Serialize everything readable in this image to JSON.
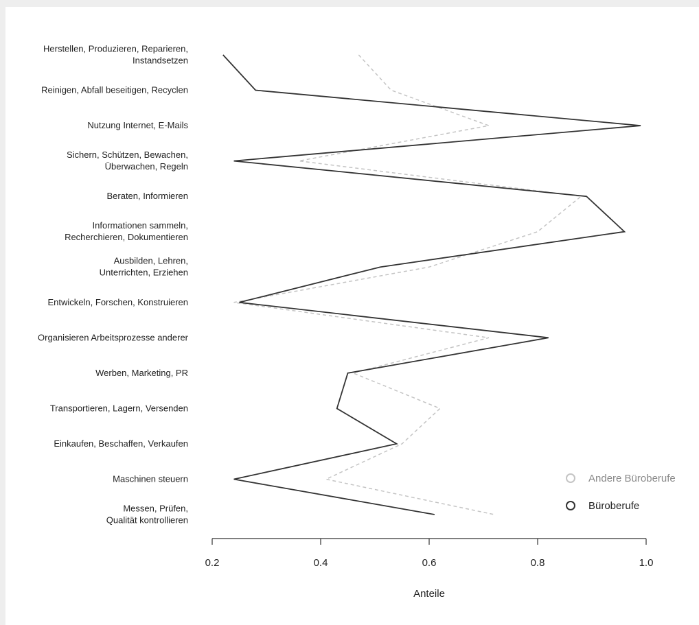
{
  "chart_data": {
    "type": "line",
    "orientation": "horizontal",
    "xlabel": "Anteile",
    "xlim": [
      0.2,
      1.0
    ],
    "xticks": [
      "0.2",
      "0.4",
      "0.6",
      "0.8",
      "1.0"
    ],
    "grid": false,
    "legend_position": "bottom-right",
    "categories": [
      [
        "Herstellen, Produzieren, Reparieren,",
        "Instandsetzen"
      ],
      [
        "Reinigen, Abfall beseitigen, Recyclen"
      ],
      [
        "Nutzung Internet, E-Mails"
      ],
      [
        "Sichern, Schützen, Bewachen,",
        "Überwachen, Regeln"
      ],
      [
        "Beraten, Informieren"
      ],
      [
        "Informationen sammeln,",
        "Recherchieren, Dokumentieren"
      ],
      [
        "Ausbilden, Lehren,",
        "Unterrichten, Erziehen"
      ],
      [
        "Entwickeln, Forschen, Konstruieren"
      ],
      [
        "Organisieren Arbeitsprozesse anderer"
      ],
      [
        "Werben, Marketing, PR"
      ],
      [
        "Transportieren, Lagern, Versenden"
      ],
      [
        "Einkaufen, Beschaffen, Verkaufen"
      ],
      [
        "Maschinen steuern"
      ],
      [
        "Messen, Prüfen,",
        "Qualität kontrollieren"
      ]
    ],
    "series": [
      {
        "name": "Andere Büroberufe",
        "color": "#c4c4c4",
        "dash": true,
        "values": [
          0.47,
          0.53,
          0.71,
          0.36,
          0.88,
          0.8,
          0.6,
          0.24,
          0.71,
          0.46,
          0.62,
          0.55,
          0.41,
          0.72
        ]
      },
      {
        "name": "Büroberufe",
        "color": "#333333",
        "dash": false,
        "values": [
          0.22,
          0.28,
          0.99,
          0.24,
          0.89,
          0.96,
          0.51,
          0.25,
          0.82,
          0.45,
          0.43,
          0.54,
          0.24,
          0.61
        ]
      }
    ]
  }
}
